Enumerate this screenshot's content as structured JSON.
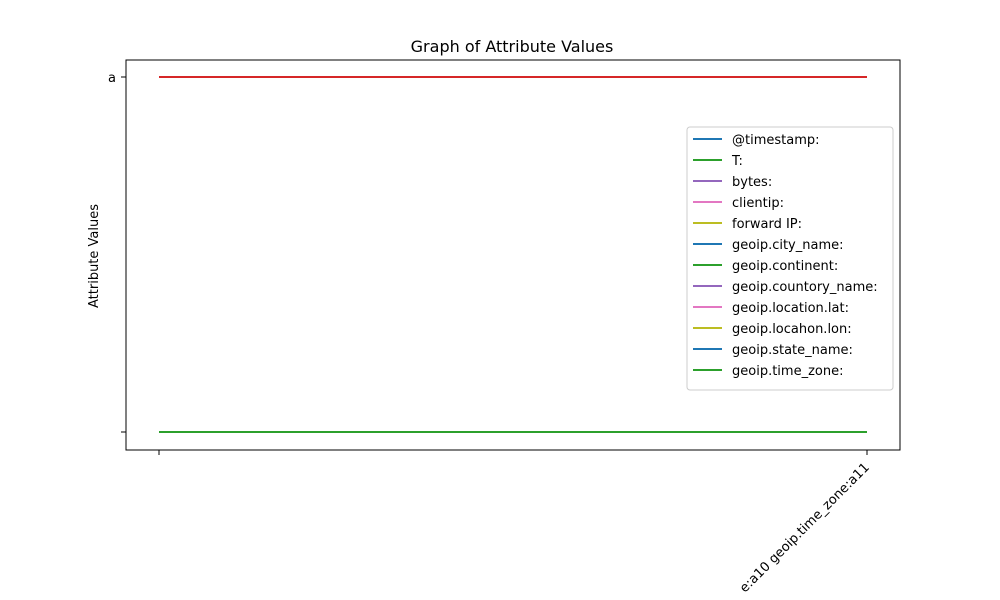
{
  "chart_data": {
    "type": "line",
    "title": "Graph of Attribute Values",
    "xlabel": "",
    "ylabel": "Attribute Values",
    "x_categories": [
      "",
      "e:a10 geoip.time_zone:a11"
    ],
    "y_categories": [
      "",
      "a"
    ],
    "grid": false,
    "legend_position": "right",
    "series": [
      {
        "name": "@timestamp:",
        "color": "#1f77b4",
        "values": [
          "",
          ""
        ]
      },
      {
        "name": "T:",
        "color": "#2ca02c",
        "values": [
          "",
          ""
        ]
      },
      {
        "name": "bytes:",
        "color": "#9467bd",
        "values": [
          "",
          ""
        ]
      },
      {
        "name": "clientip:",
        "color": "#e377c2",
        "values": [
          "",
          ""
        ]
      },
      {
        "name": "forward IP:",
        "color": "#bcbd22",
        "values": [
          "",
          ""
        ]
      },
      {
        "name": "geoip.city_name:",
        "color": "#1f77b4",
        "values": [
          "",
          ""
        ]
      },
      {
        "name": "geoip.continent:",
        "color": "#2ca02c",
        "values": [
          "",
          ""
        ]
      },
      {
        "name": "geoip.countory_name:",
        "color": "#9467bd",
        "values": [
          "",
          ""
        ]
      },
      {
        "name": "geoip.location.lat:",
        "color": "#e377c2",
        "values": [
          "",
          ""
        ]
      },
      {
        "name": "geoip.locahon.lon:",
        "color": "#bcbd22",
        "values": [
          "",
          ""
        ]
      },
      {
        "name": "geoip.state_name:",
        "color": "#1f77b4",
        "values": [
          "",
          ""
        ]
      },
      {
        "name": "geoip.time_zone:",
        "color": "#2ca02c",
        "values": [
          "",
          ""
        ]
      },
      {
        "name": "",
        "color": "#d62728",
        "values": [
          "a",
          "a"
        ]
      }
    ]
  }
}
